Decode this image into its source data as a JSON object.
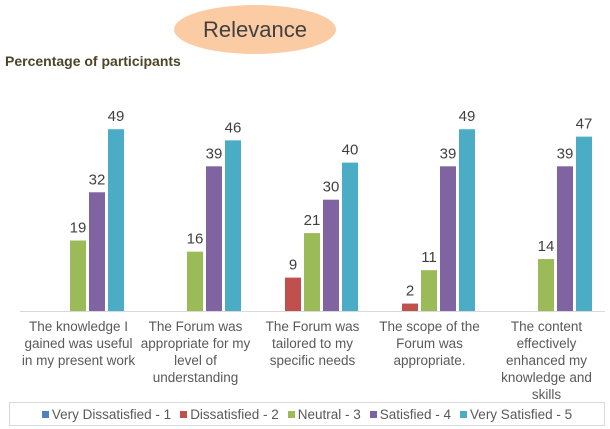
{
  "chart_data": {
    "type": "bar",
    "title": "Relevance",
    "ylabel": "Percentage of participants",
    "xlabel": "",
    "ylim": [
      0,
      50
    ],
    "grid": false,
    "legend_position": "bottom",
    "categories": [
      "The knowledge I gained was useful in my present work",
      "The Forum was appropriate for my level of understanding",
      "The Forum was tailored to my specific needs",
      "The scope of the Forum was appropriate.",
      "The content effectively enhanced my knowledge and skills"
    ],
    "series": [
      {
        "name": "Very Dissatisfied - 1",
        "color": "#4f81bd",
        "values": [
          null,
          null,
          null,
          null,
          null
        ]
      },
      {
        "name": "Dissatisfied - 2",
        "color": "#c0504d",
        "values": [
          null,
          null,
          9,
          2,
          null
        ]
      },
      {
        "name": "Neutral - 3",
        "color": "#9bbb59",
        "values": [
          19,
          16,
          21,
          11,
          14
        ]
      },
      {
        "name": "Satisfied - 4",
        "color": "#8064a2",
        "values": [
          32,
          39,
          30,
          39,
          39
        ]
      },
      {
        "name": "Very Satisfied - 5",
        "color": "#4bacc6",
        "values": [
          49,
          46,
          40,
          49,
          47
        ]
      }
    ]
  }
}
